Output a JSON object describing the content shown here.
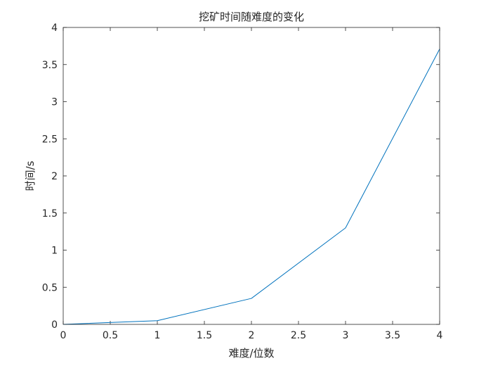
{
  "chart_data": {
    "type": "line",
    "title": "挖矿时间随难度的变化",
    "xlabel": "难度/位数",
    "ylabel": "时间/s",
    "xlim": [
      0,
      4
    ],
    "ylim": [
      0,
      4
    ],
    "xticks": [
      0,
      0.5,
      1,
      1.5,
      2,
      2.5,
      3,
      3.5,
      4
    ],
    "xtick_labels": [
      "0",
      "0.5",
      "1",
      "1.5",
      "2",
      "2.5",
      "3",
      "3.5",
      "4"
    ],
    "yticks": [
      0,
      0.5,
      1,
      1.5,
      2,
      2.5,
      3,
      3.5,
      4
    ],
    "ytick_labels": [
      "0",
      "0.5",
      "1",
      "1.5",
      "2",
      "2.5",
      "3",
      "3.5",
      "4"
    ],
    "grid": false,
    "legend": "none",
    "series": [
      {
        "color": "#0072bd",
        "x": [
          0,
          1,
          2,
          3,
          4
        ],
        "y": [
          0,
          0.05,
          0.35,
          1.3,
          3.71
        ]
      }
    ]
  }
}
